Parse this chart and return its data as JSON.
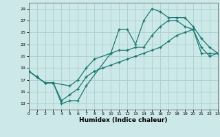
{
  "xlabel": "Humidex (Indice chaleur)",
  "xlim": [
    0,
    23
  ],
  "ylim": [
    12,
    30
  ],
  "yticks": [
    13,
    15,
    17,
    19,
    21,
    23,
    25,
    27,
    29
  ],
  "xticks": [
    0,
    1,
    2,
    3,
    4,
    5,
    6,
    7,
    8,
    9,
    10,
    11,
    12,
    13,
    14,
    15,
    16,
    17,
    18,
    19,
    20,
    21,
    22,
    23
  ],
  "bg_color": "#cce8e8",
  "line_color": "#1a7870",
  "grid_color": "#aad0d0",
  "line1_x": [
    0,
    1,
    2,
    3,
    4,
    5,
    6,
    7,
    10,
    11,
    12,
    13,
    14,
    15,
    16,
    17,
    18,
    19,
    20,
    21,
    22,
    23
  ],
  "line1_y": [
    18.5,
    17.5,
    16.5,
    16.5,
    13.0,
    13.5,
    13.5,
    16.0,
    21.5,
    25.5,
    25.5,
    23.0,
    27.0,
    29.0,
    28.5,
    27.5,
    27.5,
    27.5,
    26.0,
    24.0,
    22.5,
    21.5
  ],
  "line2_x": [
    0,
    1,
    2,
    3,
    5,
    6,
    7,
    8,
    10,
    11,
    12,
    13,
    14,
    15,
    16,
    17,
    18,
    19,
    20,
    21,
    22,
    23
  ],
  "line2_y": [
    18.5,
    17.5,
    16.5,
    16.5,
    16.0,
    17.0,
    19.0,
    20.5,
    21.5,
    22.0,
    22.0,
    22.5,
    22.5,
    24.5,
    26.0,
    27.0,
    27.0,
    26.0,
    25.5,
    21.5,
    21.5,
    21.5
  ],
  "line3_x": [
    0,
    1,
    2,
    3,
    4,
    5,
    6,
    7,
    8,
    9,
    10,
    11,
    12,
    13,
    14,
    15,
    16,
    17,
    18,
    19,
    20,
    21,
    22,
    23
  ],
  "line3_y": [
    18.5,
    17.5,
    16.5,
    16.5,
    13.5,
    14.5,
    15.5,
    17.5,
    18.5,
    19.0,
    19.5,
    20.0,
    20.5,
    21.0,
    21.5,
    22.0,
    22.5,
    23.5,
    24.5,
    25.0,
    25.5,
    22.5,
    21.0,
    21.5
  ]
}
